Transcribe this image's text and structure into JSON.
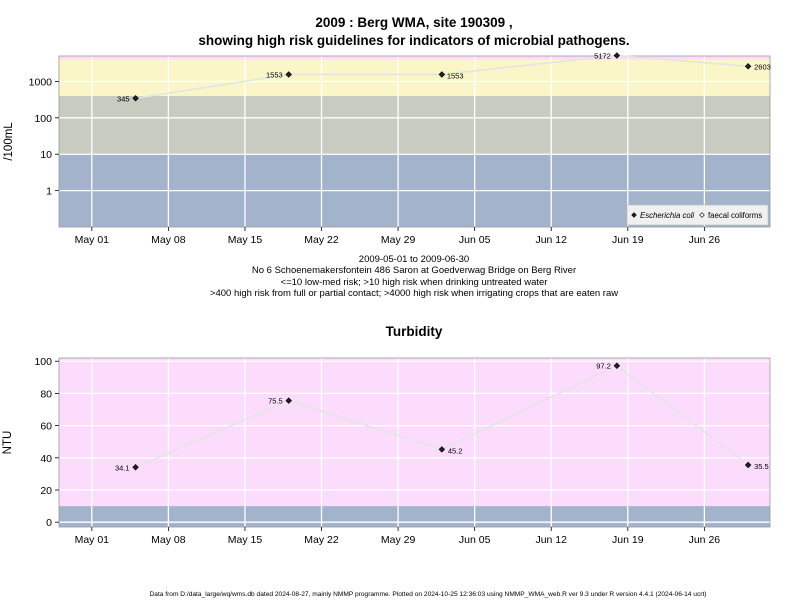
{
  "chart_data": [
    {
      "type": "line",
      "title_line1": "2009 : Berg WMA, site 190309 ,",
      "title_line2": "showing high risk guidelines for indicators of microbial pathogens.",
      "ylabel": "/100mL",
      "y_scale": "log10",
      "ylim": [
        0.1,
        5000
      ],
      "y_ticks": [
        1,
        10,
        100,
        1000
      ],
      "y_tick_labels": [
        "1",
        "10",
        "100",
        "1000"
      ],
      "x_range": [
        "2009-04-28",
        "2009-07-02"
      ],
      "x_ticks": [
        "2009-05-01",
        "2009-05-08",
        "2009-05-15",
        "2009-05-22",
        "2009-05-29",
        "2009-06-05",
        "2009-06-12",
        "2009-06-19",
        "2009-06-26"
      ],
      "x_tick_labels": [
        "May 01",
        "May 08",
        "May 15",
        "May 22",
        "May 29",
        "Jun 05",
        "Jun 12",
        "Jun 19",
        "Jun 26"
      ],
      "grid": true,
      "bands": [
        {
          "from": 0.1,
          "to": 10,
          "color": "#a3b3cc"
        },
        {
          "from": 10,
          "to": 400,
          "color": "#c8cbc0"
        },
        {
          "from": 400,
          "to": 4000,
          "color": "#faf6c8"
        },
        {
          "from": 4000,
          "to": 5000,
          "color": "#fcdcfc"
        }
      ],
      "series": [
        {
          "name": "Escherichia coli",
          "marker": "filled-diamond",
          "x": [
            "2009-05-05",
            "2009-05-19",
            "2009-06-02",
            "2009-06-18",
            "2009-06-30"
          ],
          "values": [
            345,
            1553,
            1553,
            5172,
            2603
          ],
          "labels": [
            "345",
            "1553",
            "1553",
            "5172",
            "2603"
          ]
        }
      ],
      "legend": {
        "position": "bottom-right",
        "entries": [
          {
            "name": "Escherichia coli",
            "marker": "filled-diamond"
          },
          {
            "name": "faecal coliforms",
            "marker": "open-diamond"
          }
        ]
      },
      "caption": [
        "2009-05-01 to 2009-06-30",
        "No 6 Schoenemakersfontein 486 Saron at Goedverwag Bridge on Berg River",
        "<=10 low-med risk; >10 high risk when drinking untreated water",
        ">400 high risk from full or partial contact; >4000 high risk when irrigating crops that are eaten raw"
      ]
    },
    {
      "type": "line",
      "title": "Turbidity",
      "ylabel": "NTU",
      "ylim": [
        -3,
        102
      ],
      "y_ticks": [
        0,
        20,
        40,
        60,
        80,
        100
      ],
      "y_tick_labels": [
        "0",
        "20",
        "40",
        "60",
        "80",
        "100"
      ],
      "x_range": [
        "2009-04-28",
        "2009-07-02"
      ],
      "x_ticks": [
        "2009-05-01",
        "2009-05-08",
        "2009-05-15",
        "2009-05-22",
        "2009-05-29",
        "2009-06-05",
        "2009-06-12",
        "2009-06-19",
        "2009-06-26"
      ],
      "x_tick_labels": [
        "May 01",
        "May 08",
        "May 15",
        "May 22",
        "May 29",
        "Jun 05",
        "Jun 12",
        "Jun 19",
        "Jun 26"
      ],
      "grid": true,
      "bands": [
        {
          "from": -3,
          "to": 10,
          "color": "#a3b3cc"
        },
        {
          "from": 10,
          "to": 102,
          "color": "#fcdcfc"
        }
      ],
      "series": [
        {
          "marker": "filled-diamond",
          "x": [
            "2009-05-05",
            "2009-05-19",
            "2009-06-02",
            "2009-06-18",
            "2009-06-30"
          ],
          "values": [
            34.1,
            75.5,
            45.2,
            97.2,
            35.5
          ],
          "labels": [
            "34.1",
            "75.5",
            "45.2",
            "97.2",
            "35.5"
          ]
        }
      ]
    }
  ],
  "footer": "Data from D:/data_large/wq/wms.db dated 2024-08-27, mainly NMMP programme. Plotted on 2024-10-25 12:36:03 using NMMP_WMA_web.R ver 9.3 under R version 4.4.1 (2024-06-14 ucrt)"
}
